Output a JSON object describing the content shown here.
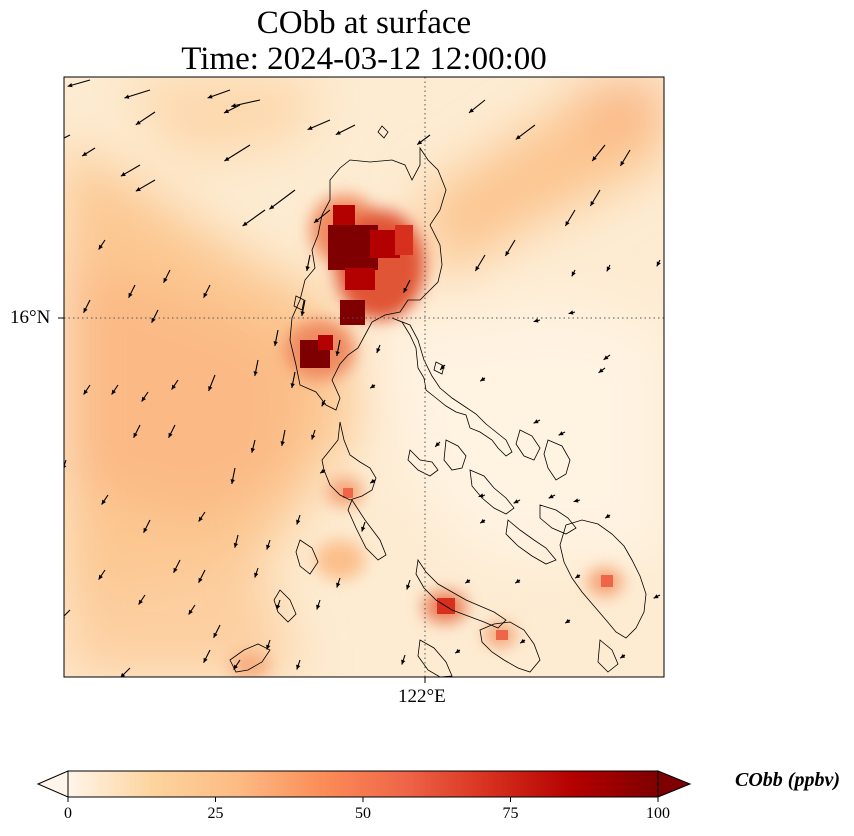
{
  "title": {
    "line1": "CObb at surface",
    "line2": "Time: 2024-03-12 12:00:00"
  },
  "map": {
    "lat_label": "16°N",
    "lon_label": "122°E",
    "gridline_style": "dotted",
    "has_wind_vectors": true,
    "has_coastlines": true
  },
  "colorbar": {
    "label": "CObb (ppbv)",
    "min": 0,
    "max": 100,
    "ticks": [
      "0",
      "25",
      "50",
      "75",
      "100"
    ],
    "extend": "both",
    "colormap_stops": [
      "#fff5eb",
      "#fdd49e",
      "#fdbb84",
      "#fc8d59",
      "#ef6548",
      "#d7301f",
      "#b30000",
      "#7f0000"
    ]
  },
  "colors": {
    "land_outline": "#000000",
    "gridline": "#555555",
    "arrow": "#000000"
  }
}
